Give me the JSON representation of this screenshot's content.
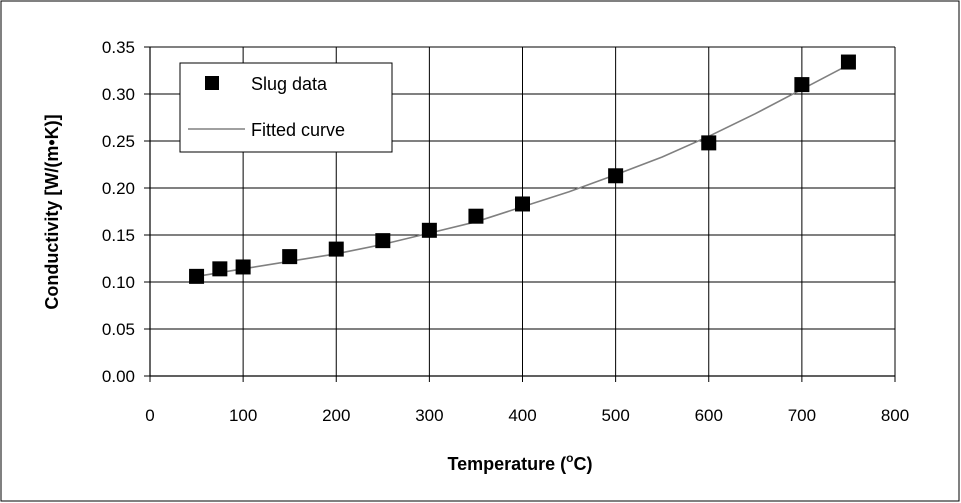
{
  "chart_data": {
    "type": "scatter",
    "title": "",
    "xlabel": "Temperature (°C)",
    "xlabel_parts": {
      "before": "Temperature (",
      "sup": "o",
      "after": "C)"
    },
    "ylabel": "Conductivity [W/(m•K)]",
    "xlim": [
      0,
      800
    ],
    "ylim": [
      0,
      0.35
    ],
    "x_ticks": [
      0,
      100,
      200,
      300,
      400,
      500,
      600,
      700,
      800
    ],
    "x_tick_labels": [
      "0",
      "100",
      "200",
      "300",
      "400",
      "500",
      "600",
      "700",
      "800"
    ],
    "y_ticks": [
      0,
      0.05,
      0.1,
      0.15,
      0.2,
      0.25,
      0.3,
      0.35
    ],
    "y_tick_labels": [
      "0.00",
      "0.05",
      "0.10",
      "0.15",
      "0.20",
      "0.25",
      "0.30",
      "0.35"
    ],
    "grid": true,
    "legend_position": "top-left",
    "series": [
      {
        "name": "Slug data",
        "kind": "markers",
        "color": "#000000",
        "x": [
          50,
          75,
          100,
          150,
          200,
          250,
          300,
          350,
          400,
          500,
          600,
          700,
          750
        ],
        "y": [
          0.106,
          0.114,
          0.116,
          0.127,
          0.135,
          0.144,
          0.155,
          0.17,
          0.183,
          0.213,
          0.248,
          0.31,
          0.334
        ]
      },
      {
        "name": "Fitted curve",
        "kind": "line",
        "color": "#808080",
        "x": [
          50,
          100,
          150,
          200,
          250,
          300,
          350,
          400,
          450,
          500,
          550,
          600,
          650,
          700,
          750
        ],
        "y": [
          0.106,
          0.114,
          0.122,
          0.13,
          0.14,
          0.152,
          0.164,
          0.18,
          0.196,
          0.214,
          0.233,
          0.255,
          0.279,
          0.305,
          0.331
        ]
      }
    ]
  }
}
